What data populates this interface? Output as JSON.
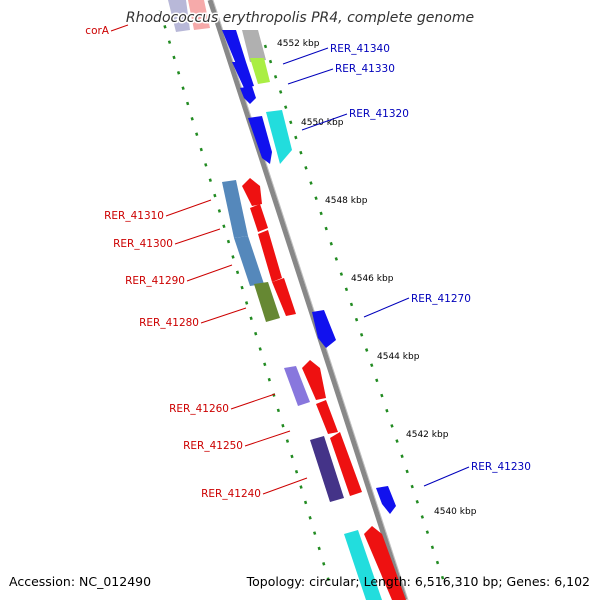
{
  "title": "Rhodococcus erythropolis PR4, complete genome",
  "footer": {
    "accession": "Accession: NC_012490",
    "summary": "Topology: circular; Length: 6,516,310 bp; Genes: 6,102"
  },
  "ruler_labels": [
    {
      "text": "4552 kbp"
    },
    {
      "text": "4550 kbp"
    },
    {
      "text": "4548 kbp"
    },
    {
      "text": "4546 kbp"
    },
    {
      "text": "4544 kbp"
    },
    {
      "text": "4542 kbp"
    },
    {
      "text": "4540 kbp"
    }
  ],
  "gene_labels": [
    {
      "text": "corA",
      "strand": "reverse"
    },
    {
      "text": "RER_41340",
      "strand": "forward"
    },
    {
      "text": "RER_41330",
      "strand": "forward"
    },
    {
      "text": "RER_41320",
      "strand": "forward"
    },
    {
      "text": "RER_41310",
      "strand": "reverse"
    },
    {
      "text": "RER_41300",
      "strand": "reverse"
    },
    {
      "text": "RER_41290",
      "strand": "reverse"
    },
    {
      "text": "RER_41280",
      "strand": "reverse"
    },
    {
      "text": "RER_41270",
      "strand": "forward"
    },
    {
      "text": "RER_41260",
      "strand": "reverse"
    },
    {
      "text": "RER_41250",
      "strand": "reverse"
    },
    {
      "text": "RER_41240",
      "strand": "reverse"
    },
    {
      "text": "RER_41230",
      "strand": "forward"
    }
  ],
  "colors": {
    "forward_label": "#0000bb",
    "reverse_label": "#cc0000",
    "backbone": "#888888",
    "tick": "#228b22"
  }
}
